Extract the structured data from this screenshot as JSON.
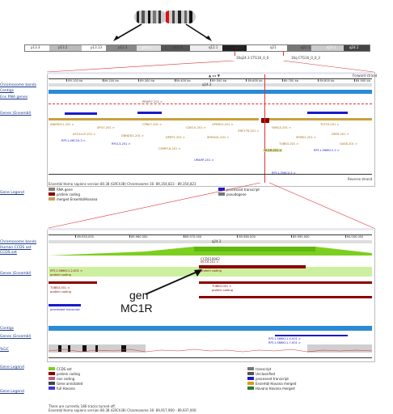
{
  "chromosome": {
    "bands": [
      "p13.3",
      "p13.2",
      "p13.13",
      "p12.3",
      "p12.1",
      "p11.2",
      "q12.1",
      "q13.1",
      "q21",
      "q22.1",
      "q23.1",
      "q24.1"
    ],
    "region_labels": [
      "16q24.3 CTG16_0_0",
      "16q CTG16_0_0_3"
    ]
  },
  "top_view": {
    "rows": [
      {
        "label": "Chromosome bands"
      },
      {
        "label": "Contigs"
      },
      {
        "label": "Ens RNA genes"
      },
      {
        "label": "Genes (Ensembl)"
      },
      {
        "label": "Gene Legend"
      }
    ],
    "ruler_ticks": [
      "89.100 kb",
      "89.200 kb",
      "89.300 kb",
      "89.400 kb",
      "89.500 kb",
      "89.600 kb",
      "89.700 kb",
      "89.800 kb",
      "89.900 kb"
    ],
    "chrom_band_label": "q24.3",
    "forward_strand": "Forward strand",
    "reverse_strand": "Reverse strand",
    "genes": [
      "ANKRD11-201 >",
      "SPG7-201 >",
      "RPL13-201 >",
      "CPNE7-201 >",
      "DPEP1-201 >",
      "CHMP1A-201 >",
      "CDK10-201 >",
      "SPATA2L-201 >",
      "VPS9D1-201 >",
      "ZNF276-201 >",
      "FANCA-201 >",
      "SPIRE2-201 >",
      "TCF25-201 >",
      "MC1R-201 >",
      "TUBB3-201 >",
      "DEF8-201 >",
      "AFG3L1P-201 >",
      "DBNDD1-201 >",
      "GAS8-201 >",
      "URAHP-201 >",
      "PRDM7-201 >",
      "RP11-566K11.2 >",
      "RP11-46C24.3 >",
      "RP11-356C4.5 >"
    ],
    "footer": "Ensembl Homo sapiens version 80.38 (GRCh38) Chromosome 16: 89,354,823 - 89,354,823",
    "legend": [
      {
        "label": "RNA gene",
        "color": "#8a7f7a"
      },
      {
        "label": "protein coding",
        "color": "#8b0000"
      },
      {
        "label": "merged Ensembl/Havana",
        "color": "#c8a060"
      },
      {
        "label": "processed transcript",
        "color": "#1a1acc"
      },
      {
        "label": "pseudogene",
        "color": "#777777"
      }
    ]
  },
  "bottom_view": {
    "rows": [
      {
        "label": "Chromosome bands"
      },
      {
        "label": "Human CCDS set"
      },
      {
        "label": "CCDS set"
      },
      {
        "label": "Genes (Ensembl)"
      },
      {
        "label": "Contigs"
      },
      {
        "label": "Genes (Ensembl)"
      },
      {
        "label": "%GC"
      },
      {
        "label": "Gene Legend"
      },
      {
        "label": "Gene Legend"
      }
    ],
    "ruler_ticks": [
      "89.950.000",
      "89.960.000",
      "89.970.000",
      "89.980.000",
      "89.990.000",
      "90.000.000"
    ],
    "chrom_band_label": "q24.3",
    "ccds_label": "CCDS10962",
    "gene_top_label": "MC1R-201 >",
    "gene_top_sub": "protein coding",
    "left_labels": [
      "RP11-566K11.2-001 <",
      "protein coding",
      "TUBB3-001 >",
      "protein coding"
    ],
    "bottom_blue_labels": [
      "RP11-566K11.4-001 >",
      "RP11-566K11.7-001 >"
    ],
    "processed_label": "processed transcript",
    "annotation_line1": "gen",
    "annotation_line2": "MC1R",
    "legend": [
      {
        "label": "CCDS set",
        "color": "#7ccf1e"
      },
      {
        "label": "protein coding",
        "color": "#8b0000"
      },
      {
        "label": "non coding",
        "color": "#c06080"
      },
      {
        "label": "Gene annotated",
        "color": "#444444"
      },
      {
        "label": "full Havana",
        "color": "#3b3bd6"
      },
      {
        "label": "transcript",
        "color": "#777777"
      },
      {
        "label": "Unclassified",
        "color": "#555555"
      },
      {
        "label": "processed transcript",
        "color": "#1a1acc"
      },
      {
        "label": "Ensembl Havana merged",
        "color": "#d4a017"
      },
      {
        "label": "Havana Havana merged",
        "color": "#2f7a2f"
      }
    ],
    "footer1": "There are currently 186 tracks turned off.",
    "footer2": "Ensembl Homo sapiens version 80.38 (GRCh38) Chromosome 16: 89,917,900 - 89,937,000"
  }
}
